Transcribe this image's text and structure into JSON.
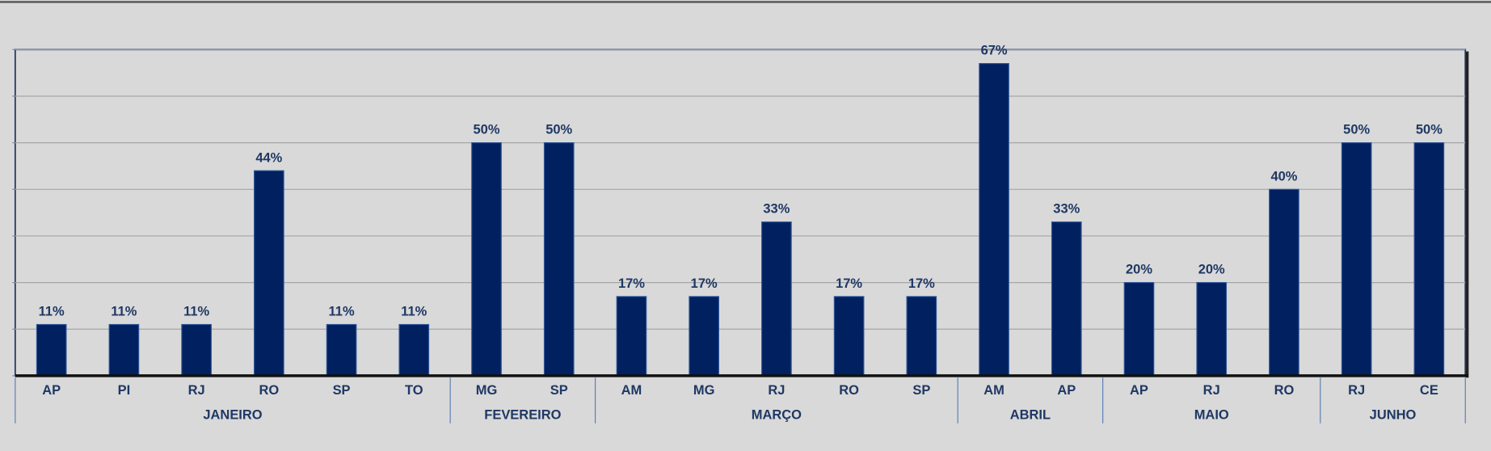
{
  "chart_data": {
    "type": "bar",
    "category_groups": [
      {
        "name": "JANEIRO",
        "categories": [
          "AP",
          "PI",
          "RJ",
          "RO",
          "SP",
          "TO"
        ]
      },
      {
        "name": "FEVEREIRO",
        "categories": [
          "MG",
          "SP"
        ]
      },
      {
        "name": "MARÇO",
        "categories": [
          "AM",
          "MG",
          "RJ",
          "RO",
          "SP"
        ]
      },
      {
        "name": "ABRIL",
        "categories": [
          "AM",
          "AP"
        ]
      },
      {
        "name": "MAIO",
        "categories": [
          "AP",
          "RJ",
          "RO"
        ]
      },
      {
        "name": "JUNHO",
        "categories": [
          "RJ",
          "CE"
        ]
      }
    ],
    "values": [
      11,
      11,
      11,
      44,
      11,
      11,
      50,
      50,
      17,
      17,
      33,
      17,
      17,
      67,
      33,
      20,
      20,
      40,
      50,
      50
    ],
    "value_labels": [
      "11%",
      "11%",
      "11%",
      "44%",
      "11%",
      "11%",
      "50%",
      "50%",
      "17%",
      "17%",
      "33%",
      "17%",
      "17%",
      "67%",
      "33%",
      "20%",
      "20%",
      "40%",
      "50%",
      "50%"
    ],
    "color": "#002060",
    "ylim": [
      0,
      70
    ],
    "yticks": [
      0,
      10,
      20,
      30,
      40,
      50,
      60,
      70
    ],
    "grid": true
  }
}
